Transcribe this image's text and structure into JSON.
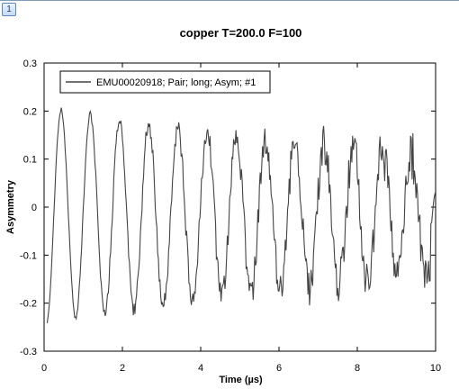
{
  "window": {
    "badge": "1"
  },
  "chart_data": {
    "type": "line",
    "title": "copper T=200.0 F=100",
    "xlabel": "Time (µs)",
    "ylabel": "Asymmetry",
    "xlim": [
      0,
      10
    ],
    "ylim": [
      -0.3,
      0.3
    ],
    "xticks": [
      0,
      2,
      4,
      6,
      8,
      10
    ],
    "yticks": [
      -0.3,
      -0.2,
      -0.1,
      0,
      0.1,
      0.2,
      0.3
    ],
    "grid": false,
    "legend_position": "top-left",
    "series": [
      {
        "name": "EMU00020918; Pair; long; Asym; #1",
        "color": "#444444",
        "model": "damped cosine with noise",
        "t0": 0.08,
        "amplitude": 0.226,
        "frequency_mhz": 1.34,
        "phase": 3.3,
        "decay_rate": 0.06,
        "offset": -0.017,
        "dt": 0.02,
        "t_end": 9.96
      }
    ]
  }
}
